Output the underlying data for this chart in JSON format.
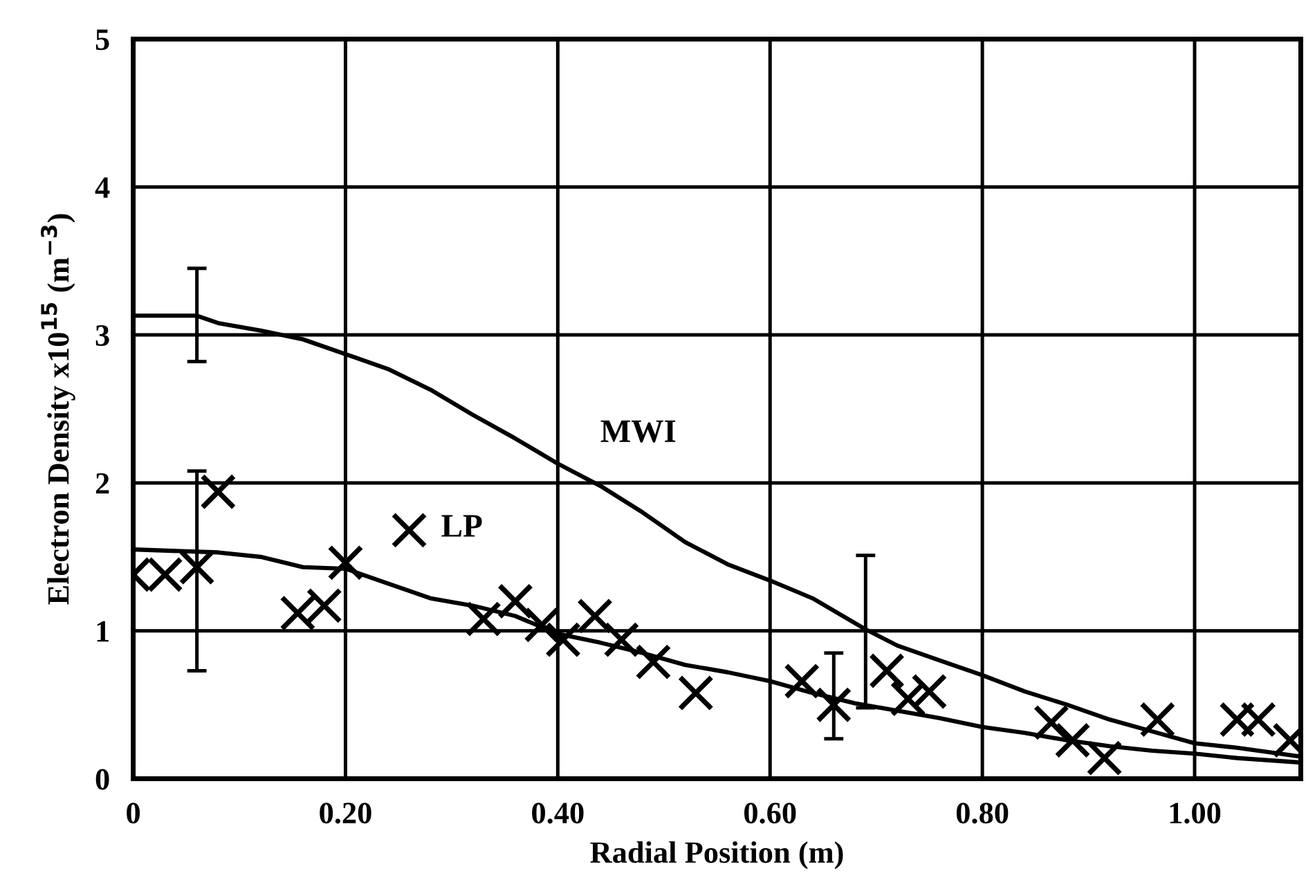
{
  "chart_data": {
    "type": "line",
    "xlabel": "Radial Position (m)",
    "ylabel": "Electron Density x10$^{15}$ (m$^{−3}$)",
    "xlim": [
      0,
      1.1
    ],
    "ylim": [
      0,
      5
    ],
    "xticks": [
      0,
      {
        "value": 0.2,
        "label": "0.20"
      },
      {
        "value": 0.4,
        "label": "0.40"
      },
      {
        "value": 0.6,
        "label": "0.60"
      },
      {
        "value": 0.8,
        "label": "0.80"
      },
      {
        "value": 1.0,
        "label": "1.00"
      }
    ],
    "yticks": [
      0,
      1,
      2,
      3,
      4,
      5
    ],
    "grid": true,
    "legend": false,
    "line_style": "solid",
    "series": [
      {
        "name": "MWI",
        "color": "#000000",
        "marker": "none",
        "x": [
          0,
          0.06,
          0.08,
          0.12,
          0.16,
          0.2,
          0.24,
          0.28,
          0.32,
          0.36,
          0.4,
          0.44,
          0.48,
          0.52,
          0.56,
          0.6,
          0.64,
          0.69,
          0.72,
          0.76,
          0.8,
          0.84,
          0.88,
          0.92,
          0.96,
          1.0,
          1.04,
          1.08,
          1.1
        ],
        "values": [
          3.13,
          3.13,
          3.08,
          3.03,
          2.97,
          2.87,
          2.77,
          2.63,
          2.46,
          2.3,
          2.13,
          1.98,
          1.8,
          1.6,
          1.45,
          1.34,
          1.22,
          1.01,
          0.9,
          0.8,
          0.7,
          0.59,
          0.5,
          0.4,
          0.32,
          0.24,
          0.21,
          0.17,
          0.15
        ],
        "errors": [
          null,
          [
            2.82,
            3.45
          ],
          null,
          null,
          null,
          null,
          null,
          null,
          null,
          null,
          null,
          null,
          null,
          null,
          null,
          null,
          null,
          [
            0.48,
            1.51
          ],
          null,
          null,
          null,
          null,
          null,
          null,
          null,
          null,
          null,
          null,
          null
        ]
      },
      {
        "color": "#000000",
        "marker": "none",
        "x": [
          0,
          0.08,
          0.12,
          0.16,
          0.2,
          0.24,
          0.28,
          0.32,
          0.36,
          0.4,
          0.44,
          0.48,
          0.52,
          0.56,
          0.6,
          0.64,
          0.68,
          0.72,
          0.76,
          0.8,
          0.84,
          0.88,
          0.92,
          0.96,
          1.0,
          1.04,
          1.1
        ],
        "values": [
          1.55,
          1.53,
          1.5,
          1.43,
          1.42,
          1.32,
          1.22,
          1.17,
          1.1,
          0.98,
          0.92,
          0.85,
          0.77,
          0.72,
          0.66,
          0.58,
          0.51,
          0.46,
          0.41,
          0.35,
          0.31,
          0.26,
          0.22,
          0.19,
          0.17,
          0.14,
          0.11
        ]
      },
      {
        "name": "LP",
        "type": "scatter",
        "color": "#000000",
        "marker": "cross",
        "x": [
          0.0,
          0.03,
          0.06,
          0.08,
          0.155,
          0.18,
          0.2,
          0.26,
          0.33,
          0.36,
          0.385,
          0.405,
          0.435,
          0.46,
          0.49,
          0.53,
          0.63,
          0.66,
          0.71,
          0.73,
          0.75,
          0.865,
          0.885,
          0.915,
          0.965,
          1.04,
          1.06,
          1.09
        ],
        "values": [
          1.38,
          1.38,
          1.43,
          1.94,
          1.12,
          1.17,
          1.46,
          1.68,
          1.08,
          1.2,
          1.04,
          0.94,
          1.1,
          0.94,
          0.79,
          0.58,
          0.66,
          0.5,
          0.73,
          0.54,
          0.59,
          0.38,
          0.26,
          0.14,
          0.4,
          0.4,
          0.4,
          0.26
        ],
        "errors": [
          null,
          null,
          [
            0.73,
            2.08
          ],
          null,
          null,
          null,
          null,
          null,
          null,
          null,
          null,
          null,
          null,
          null,
          null,
          null,
          null,
          [
            0.27,
            0.85
          ],
          null,
          null,
          null,
          null,
          null,
          null,
          null,
          null,
          null,
          null
        ]
      }
    ]
  }
}
